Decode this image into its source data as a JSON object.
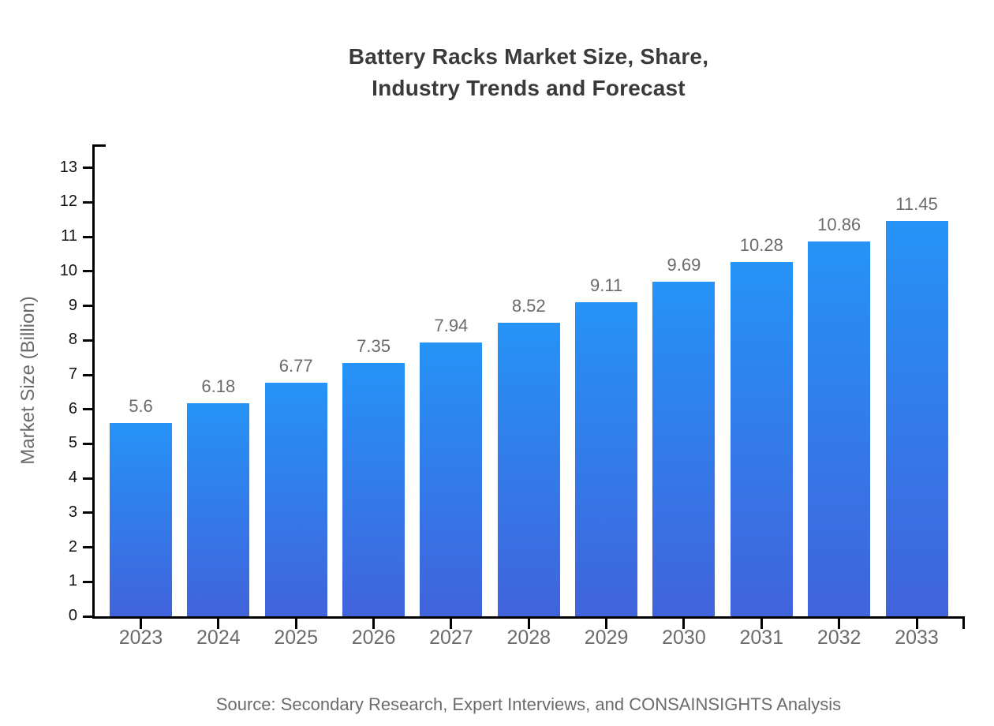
{
  "title": {
    "line1": "Battery Racks Market Size, Share,",
    "line2": "Industry Trends and Forecast"
  },
  "source": "Source: Secondary Research, Expert Interviews, and CONSAINSIGHTS Analysis",
  "chart_data": {
    "type": "bar",
    "title": "Battery Racks Market Size, Share, Industry Trends and Forecast",
    "categories": [
      "2023",
      "2024",
      "2025",
      "2026",
      "2027",
      "2028",
      "2029",
      "2030",
      "2031",
      "2032",
      "2033"
    ],
    "values": [
      5.6,
      6.18,
      6.77,
      7.35,
      7.94,
      8.52,
      9.11,
      9.69,
      10.28,
      10.86,
      11.45
    ],
    "xlabel": "",
    "ylabel": "Market Size (Billion)",
    "ylim": [
      0,
      13.68
    ],
    "y_ticks": [
      0,
      1,
      2,
      3,
      4,
      5,
      6,
      7,
      8,
      9,
      10,
      11,
      12,
      13
    ],
    "grid": false,
    "legend_position": "none",
    "data_labels": true,
    "bar_gradient_top": "#2593f7",
    "bar_gradient_bottom": "#4163db",
    "axis_color": "#000000",
    "tick_label_color": "#111111",
    "category_label_color": "#6b6b6b",
    "value_label_color": "#6b6b6b"
  }
}
